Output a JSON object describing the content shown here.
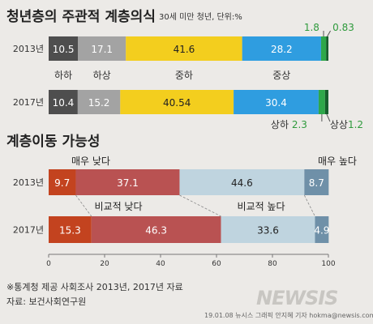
{
  "chart_data": [
    {
      "type": "bar",
      "title": "청년층의 주관적 계층의식",
      "subtitle": "30세 미만 청년, 단위:%",
      "categories": [
        "2013년",
        "2017년"
      ],
      "series": [
        {
          "name": "하하",
          "values": [
            10.5,
            10.4
          ],
          "labels": [
            "10.5",
            "10.4"
          ],
          "color": "#4e4e4e"
        },
        {
          "name": "하상",
          "values": [
            17.1,
            15.2
          ],
          "labels": [
            "17.1",
            "15.2"
          ],
          "color": "#a3a3a3"
        },
        {
          "name": "중하",
          "values": [
            41.6,
            40.54
          ],
          "labels": [
            "41.6",
            "40.54"
          ],
          "color": "#f3ce1e"
        },
        {
          "name": "중상",
          "values": [
            28.2,
            30.4
          ],
          "labels": [
            "28.2",
            "30.4"
          ],
          "color": "#2f9de0"
        },
        {
          "name": "상하",
          "values": [
            1.8,
            2.3
          ],
          "labels": [
            "1.8",
            "2.3"
          ],
          "color": "#2ea84a"
        },
        {
          "name": "상상",
          "values": [
            0.83,
            1.2
          ],
          "labels": [
            "0.83",
            "1.2"
          ],
          "color": "#175f2d"
        }
      ]
    },
    {
      "type": "bar",
      "title": "계층이동 가능성",
      "categories": [
        "2013년",
        "2017년"
      ],
      "series": [
        {
          "name": "매우 낮다",
          "values": [
            9.7,
            15.3
          ],
          "labels": [
            "9.7",
            "15.3"
          ],
          "color": "#c3431f"
        },
        {
          "name": "비교적 낮다",
          "values": [
            37.1,
            46.3
          ],
          "labels": [
            "37.1",
            "46.3"
          ],
          "color": "#b95252"
        },
        {
          "name": "비교적 높다",
          "values": [
            44.6,
            33.6
          ],
          "labels": [
            "44.6",
            "33.6"
          ],
          "color": "#bfd4df"
        },
        {
          "name": "매우 높다",
          "values": [
            8.7,
            4.9
          ],
          "labels": [
            "8.7",
            "4.9"
          ],
          "color": "#6f90a8"
        }
      ],
      "xticks": [
        0,
        20,
        40,
        60,
        80,
        100
      ],
      "xlim": [
        0,
        100
      ]
    }
  ],
  "footer": {
    "note": "※통계청 제공 사회조사 2013년, 2017년 자료",
    "source": "자료: 보건사회연구원",
    "credit": "19.01.08  뉴시스 그래픽 안지혜 기자  hokma@newsis.com",
    "logo": "NEWSIS"
  }
}
